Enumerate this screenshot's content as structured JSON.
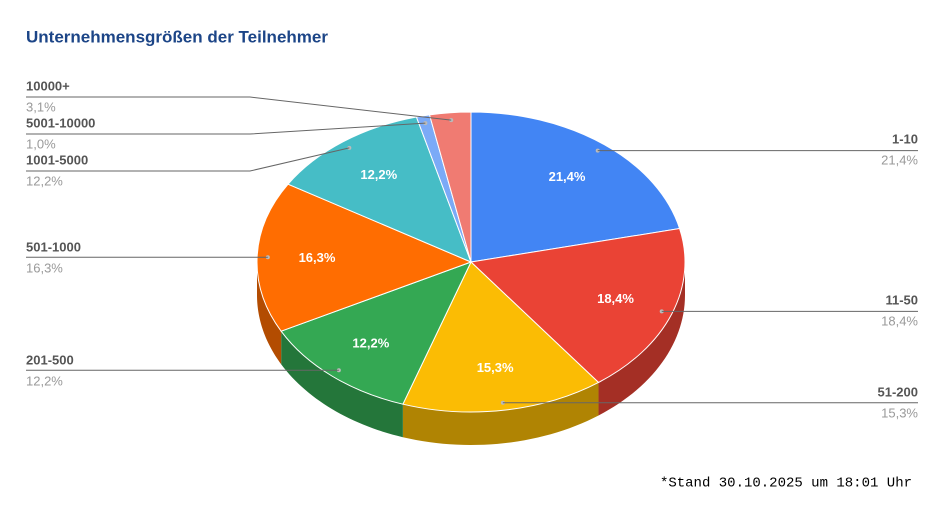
{
  "chart_data": {
    "type": "pie",
    "title": "Unternehmensgrößen der Teilnehmer",
    "note": "*Stand 30.10.2025 um 18:01 Uhr",
    "categories": [
      "1-10",
      "11-50",
      "51-200",
      "201-500",
      "501-1000",
      "1001-5000",
      "5001-10000",
      "10000+"
    ],
    "values": [
      21.4,
      18.4,
      15.3,
      12.2,
      16.3,
      12.2,
      1.0,
      3.1
    ],
    "value_labels": [
      "21,4%",
      "18,4%",
      "15,3%",
      "12,2%",
      "16,3%",
      "12,2%",
      "1,0%",
      "3,1%"
    ],
    "colors": [
      "#4285f4",
      "#ea4335",
      "#fbbc04",
      "#34a853",
      "#ff6d01",
      "#46bdc6",
      "#7baaf7",
      "#f07b72"
    ],
    "three_d": true
  }
}
